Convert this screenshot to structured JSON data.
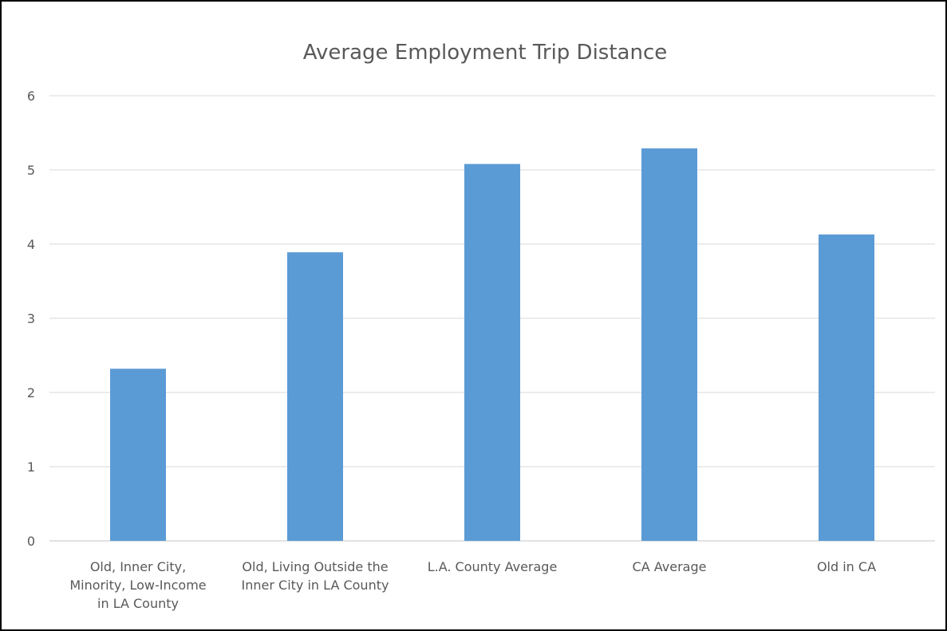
{
  "chart_data": {
    "type": "bar",
    "title": "Average Employment Trip Distance",
    "xlabel": "",
    "ylabel": "",
    "ylim": [
      0,
      6
    ],
    "y_ticks": [
      0,
      1,
      2,
      3,
      4,
      5,
      6
    ],
    "y_tick_labels": [
      "0",
      "1",
      "2",
      "3",
      "4",
      "5",
      "6"
    ],
    "grid": true,
    "legend": "none",
    "bar_color": "#5b9bd5",
    "categories": [
      [
        "Old, Inner City,",
        "Minority, Low-Income",
        "in LA County"
      ],
      [
        "Old, Living Outside the",
        "Inner City in LA County"
      ],
      [
        "L.A. County Average"
      ],
      [
        "CA Average"
      ],
      [
        "Old in CA"
      ]
    ],
    "values": [
      2.32,
      3.89,
      5.08,
      5.29,
      4.13
    ]
  }
}
